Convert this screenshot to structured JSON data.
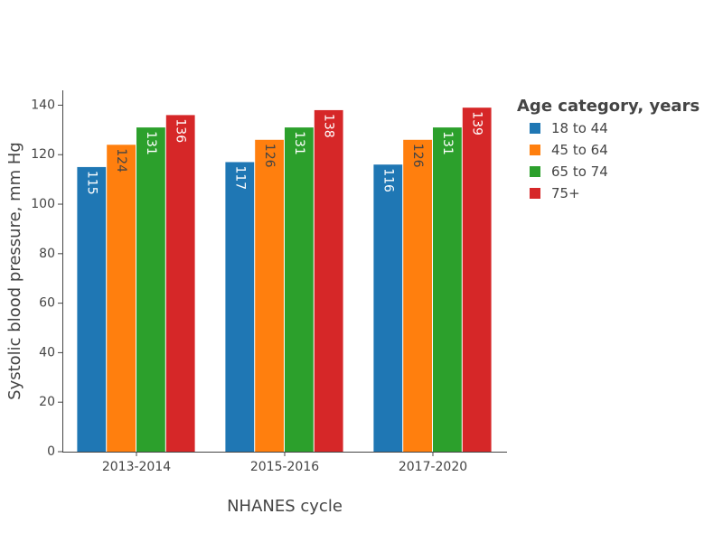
{
  "chart_data": {
    "type": "bar",
    "title": "",
    "xlabel": "NHANES cycle",
    "ylabel": "Systolic blood pressure, mm Hg",
    "categories": [
      "2013-2014",
      "2015-2016",
      "2017-2020"
    ],
    "ylim": [
      0,
      146
    ],
    "yticks": [
      0,
      20,
      40,
      60,
      80,
      100,
      120,
      140
    ],
    "grid": false,
    "legend": {
      "title": "Age category, years",
      "placement": "right"
    },
    "series": [
      {
        "name": "18 to 44",
        "color": "#1f77b4",
        "values": [
          115,
          117,
          116
        ]
      },
      {
        "name": "45 to 64",
        "color": "#ff7f0e",
        "values": [
          124,
          126,
          126
        ]
      },
      {
        "name": "65 to 74",
        "color": "#2ca02c",
        "values": [
          131,
          131,
          131
        ]
      },
      {
        "name": "75+",
        "color": "#d62728",
        "values": [
          136,
          138,
          139
        ]
      }
    ]
  }
}
